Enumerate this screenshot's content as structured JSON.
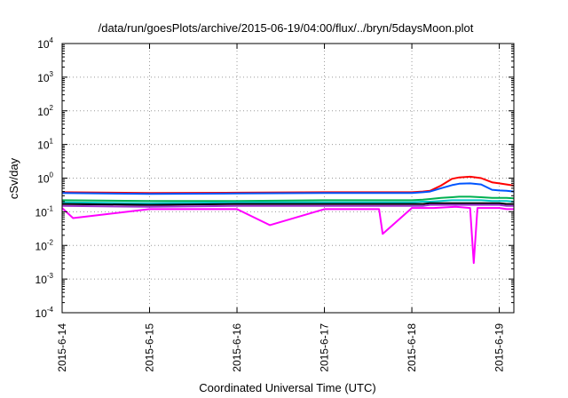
{
  "chart_data": {
    "type": "line",
    "title": "/data/run/goesPlots/archive/2015-06-19/04:00/flux/../bryn/5daysMoon.plot",
    "xlabel": "Coordinated Universal Time (UTC)",
    "ylabel": "cSv/day",
    "yscale": "log",
    "ylim": [
      0.0001,
      10000
    ],
    "ytick_base": "10",
    "ytick_exponents": [
      "4",
      "3",
      "2",
      "1",
      "0",
      "-1",
      "-2",
      "-3",
      "-4"
    ],
    "xlim": [
      "2015-06-14T00:00",
      "2015-06-19T04:00"
    ],
    "xtick_labels": [
      "2015-6-14",
      "2015-6-15",
      "2015-6-16",
      "2015-6-17",
      "2015-6-18",
      "2015-6-19"
    ],
    "grid": true,
    "series": [
      {
        "color": "#ff0000",
        "values": [
          0.38,
          0.36,
          0.37,
          0.38,
          0.38,
          0.38,
          0.4,
          0.42,
          0.6,
          0.95,
          1.05,
          1.1,
          1.0,
          0.75,
          0.7,
          0.65,
          0.6
        ],
        "x": [
          "2015-06-14T00:00",
          "2015-06-15T00:00",
          "2015-06-16T00:00",
          "2015-06-17T00:00",
          "2015-06-17T12:00",
          "2015-06-18T00:00",
          "2015-06-18T03:00",
          "2015-06-18T05:00",
          "2015-06-18T08:00",
          "2015-06-18T11:00",
          "2015-06-18T13:00",
          "2015-06-18T16:00",
          "2015-06-18T19:00",
          "2015-06-18T22:00",
          "2015-06-19T00:00",
          "2015-06-19T02:00",
          "2015-06-19T04:00"
        ]
      },
      {
        "color": "#0055ff",
        "values": [
          0.36,
          0.34,
          0.35,
          0.36,
          0.36,
          0.36,
          0.38,
          0.4,
          0.5,
          0.62,
          0.68,
          0.7,
          0.65,
          0.45,
          0.43,
          0.42,
          0.4
        ],
        "x": [
          "2015-06-14T00:00",
          "2015-06-15T00:00",
          "2015-06-16T00:00",
          "2015-06-17T00:00",
          "2015-06-17T12:00",
          "2015-06-18T00:00",
          "2015-06-18T03:00",
          "2015-06-18T05:00",
          "2015-06-18T08:00",
          "2015-06-18T11:00",
          "2015-06-18T13:00",
          "2015-06-18T16:00",
          "2015-06-18T19:00",
          "2015-06-18T22:00",
          "2015-06-19T00:00",
          "2015-06-19T02:00",
          "2015-06-19T04:00"
        ]
      },
      {
        "color": "#00b050",
        "values": [
          0.22,
          0.21,
          0.21,
          0.22,
          0.22,
          0.22,
          0.23,
          0.24,
          0.26,
          0.27,
          0.28,
          0.28,
          0.27,
          0.26,
          0.26,
          0.26,
          0.25
        ],
        "x": [
          "2015-06-14T00:00",
          "2015-06-15T00:00",
          "2015-06-16T00:00",
          "2015-06-17T00:00",
          "2015-06-17T12:00",
          "2015-06-18T00:00",
          "2015-06-18T03:00",
          "2015-06-18T05:00",
          "2015-06-18T08:00",
          "2015-06-18T11:00",
          "2015-06-18T13:00",
          "2015-06-18T16:00",
          "2015-06-18T19:00",
          "2015-06-18T22:00",
          "2015-06-19T00:00",
          "2015-06-19T02:00",
          "2015-06-19T04:00"
        ]
      },
      {
        "color": "#00c8c8",
        "values": [
          0.19,
          0.18,
          0.19,
          0.19,
          0.19,
          0.19,
          0.2,
          0.2,
          0.21,
          0.22,
          0.22,
          0.22,
          0.22,
          0.21,
          0.21,
          0.21,
          0.2
        ],
        "x": [
          "2015-06-14T00:00",
          "2015-06-15T00:00",
          "2015-06-16T00:00",
          "2015-06-17T00:00",
          "2015-06-17T12:00",
          "2015-06-18T00:00",
          "2015-06-18T03:00",
          "2015-06-18T05:00",
          "2015-06-18T08:00",
          "2015-06-18T11:00",
          "2015-06-18T13:00",
          "2015-06-18T16:00",
          "2015-06-18T19:00",
          "2015-06-18T22:00",
          "2015-06-19T00:00",
          "2015-06-19T02:00",
          "2015-06-19T04:00"
        ]
      },
      {
        "color": "#000000",
        "values": [
          0.17,
          0.16,
          0.17,
          0.17,
          0.17,
          0.17,
          0.17,
          0.18,
          0.18,
          0.18,
          0.18,
          0.18,
          0.18,
          0.18,
          0.18,
          0.17,
          0.17
        ],
        "x": [
          "2015-06-14T00:00",
          "2015-06-15T00:00",
          "2015-06-16T00:00",
          "2015-06-17T00:00",
          "2015-06-17T12:00",
          "2015-06-18T00:00",
          "2015-06-18T03:00",
          "2015-06-18T05:00",
          "2015-06-18T08:00",
          "2015-06-18T11:00",
          "2015-06-18T13:00",
          "2015-06-18T16:00",
          "2015-06-18T19:00",
          "2015-06-18T22:00",
          "2015-06-19T00:00",
          "2015-06-19T02:00",
          "2015-06-19T04:00"
        ]
      },
      {
        "color": "#9933cc",
        "values": [
          0.15,
          0.14,
          0.15,
          0.15,
          0.15,
          0.15,
          0.15,
          0.16,
          0.16,
          0.16,
          0.16,
          0.16,
          0.16,
          0.16,
          0.16,
          0.15,
          0.15
        ],
        "x": [
          "2015-06-14T00:00",
          "2015-06-15T00:00",
          "2015-06-16T00:00",
          "2015-06-17T00:00",
          "2015-06-17T12:00",
          "2015-06-18T00:00",
          "2015-06-18T03:00",
          "2015-06-18T05:00",
          "2015-06-18T08:00",
          "2015-06-18T11:00",
          "2015-06-18T13:00",
          "2015-06-18T16:00",
          "2015-06-18T19:00",
          "2015-06-18T22:00",
          "2015-06-19T00:00",
          "2015-06-19T02:00",
          "2015-06-19T04:00"
        ]
      },
      {
        "color": "#ff00ff",
        "values": [
          0.13,
          0.065,
          0.12,
          0.12,
          0.04,
          0.12,
          0.12,
          0.022,
          0.13,
          0.13,
          0.14,
          0.13,
          0.003,
          0.13,
          0.13,
          0.12,
          0.12
        ],
        "x": [
          "2015-06-14T00:00",
          "2015-06-14T03:00",
          "2015-06-15T00:00",
          "2015-06-16T00:00",
          "2015-06-16T09:00",
          "2015-06-17T00:00",
          "2015-06-17T15:00",
          "2015-06-17T16:00",
          "2015-06-18T00:00",
          "2015-06-18T06:00",
          "2015-06-18T12:00",
          "2015-06-18T16:00",
          "2015-06-18T17:00",
          "2015-06-18T18:00",
          "2015-06-19T00:00",
          "2015-06-19T02:00",
          "2015-06-19T04:00"
        ]
      }
    ]
  }
}
